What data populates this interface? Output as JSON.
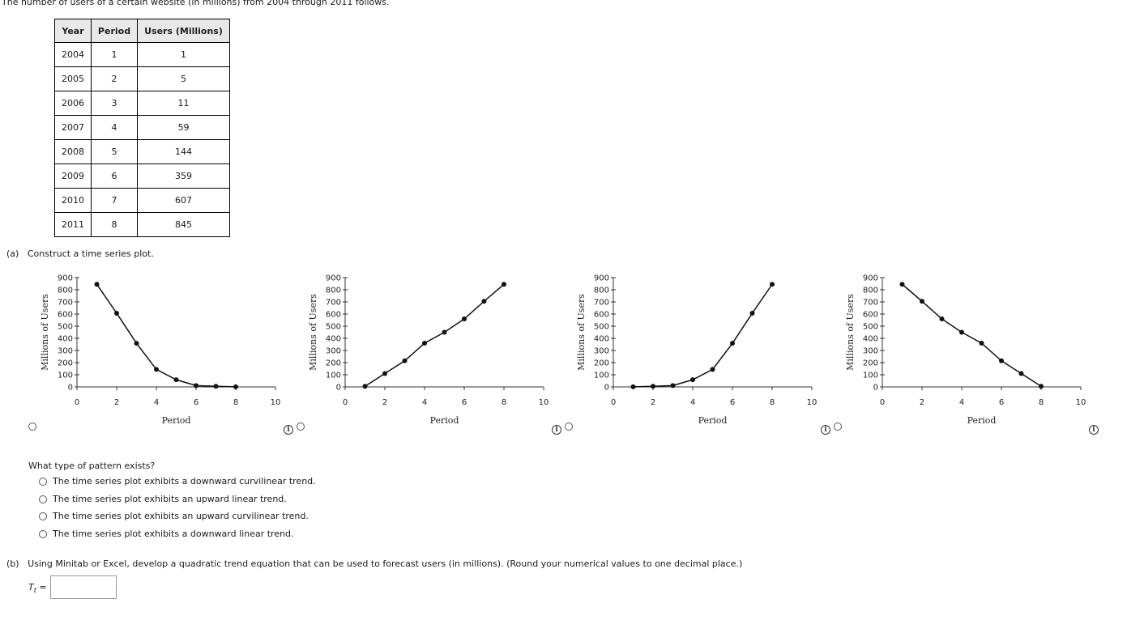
{
  "intro": "The number of users of a certain website (in millions) from 2004 through 2011 follows.",
  "table": {
    "headers": [
      "Year",
      "Period",
      "Users (Millions)"
    ],
    "rows": [
      [
        "2004",
        "1",
        "1"
      ],
      [
        "2005",
        "2",
        "5"
      ],
      [
        "2006",
        "3",
        "11"
      ],
      [
        "2007",
        "4",
        "59"
      ],
      [
        "2008",
        "5",
        "144"
      ],
      [
        "2009",
        "6",
        "359"
      ],
      [
        "2010",
        "7",
        "607"
      ],
      [
        "2011",
        "8",
        "845"
      ]
    ]
  },
  "part_a": {
    "marker": "(a)",
    "text": "Construct a time series plot."
  },
  "chart_data": [
    {
      "type": "line",
      "xlabel": "Period",
      "ylabel": "Millions of Users",
      "xlim": [
        0,
        10
      ],
      "ylim": [
        0,
        900
      ],
      "xticks": [
        0,
        2,
        4,
        6,
        8,
        10
      ],
      "yticks": [
        0,
        100,
        200,
        300,
        400,
        500,
        600,
        700,
        800,
        900
      ],
      "x": [
        1,
        2,
        3,
        4,
        5,
        6,
        7,
        8
      ],
      "y": [
        845,
        607,
        359,
        144,
        59,
        11,
        5,
        1
      ]
    },
    {
      "type": "line",
      "xlabel": "Period",
      "ylabel": "Millions of Users",
      "xlim": [
        0,
        10
      ],
      "ylim": [
        0,
        900
      ],
      "xticks": [
        0,
        2,
        4,
        6,
        8,
        10
      ],
      "yticks": [
        0,
        100,
        200,
        300,
        400,
        500,
        600,
        700,
        800,
        900
      ],
      "x": [
        1,
        2,
        3,
        4,
        5,
        6,
        7,
        8
      ],
      "y": [
        5,
        110,
        215,
        360,
        450,
        560,
        705,
        845
      ]
    },
    {
      "type": "line",
      "xlabel": "Period",
      "ylabel": "Millions of Users",
      "xlim": [
        0,
        10
      ],
      "ylim": [
        0,
        900
      ],
      "xticks": [
        0,
        2,
        4,
        6,
        8,
        10
      ],
      "yticks": [
        0,
        100,
        200,
        300,
        400,
        500,
        600,
        700,
        800,
        900
      ],
      "x": [
        1,
        2,
        3,
        4,
        5,
        6,
        7,
        8
      ],
      "y": [
        1,
        5,
        11,
        59,
        144,
        359,
        607,
        845
      ]
    },
    {
      "type": "line",
      "xlabel": "Period",
      "ylabel": "Millions of Users",
      "xlim": [
        0,
        10
      ],
      "ylim": [
        0,
        900
      ],
      "xticks": [
        0,
        2,
        4,
        6,
        8,
        10
      ],
      "yticks": [
        0,
        100,
        200,
        300,
        400,
        500,
        600,
        700,
        800,
        900
      ],
      "x": [
        1,
        2,
        3,
        4,
        5,
        6,
        7,
        8
      ],
      "y": [
        845,
        705,
        560,
        450,
        360,
        215,
        110,
        5
      ]
    }
  ],
  "info_glyph": "i",
  "question": "What type of pattern exists?",
  "options": [
    "The time series plot exhibits a downward curvilinear trend.",
    "The time series plot exhibits an upward linear trend.",
    "The time series plot exhibits an upward curvilinear trend.",
    "The time series plot exhibits a downward linear trend."
  ],
  "part_b": {
    "marker": "(b)",
    "text": "Using Minitab or Excel, develop a quadratic trend equation that can be used to forecast users (in millions). (Round your numerical values to one decimal place.)"
  },
  "answer": {
    "label": "T",
    "subscript": "t",
    "equals": "=",
    "value": ""
  }
}
